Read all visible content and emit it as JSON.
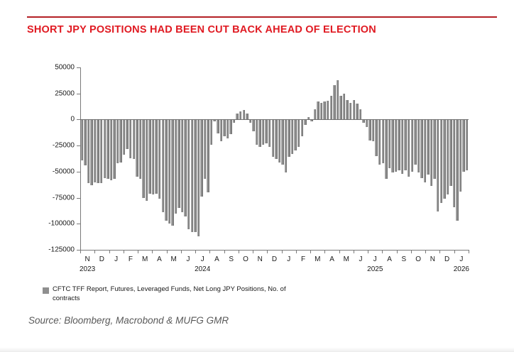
{
  "title": "SHORT JPY POSITIONS HAD BEEN CUT BACK AHEAD OF ELECTION",
  "source": "Source: Bloomberg, Macrobond & MUFG GMR",
  "legend": {
    "label": "CFTC TFF Report, Futures, Leveraged Funds, Net Long JPY Positions, No. of contracts"
  },
  "colors": {
    "title_red": "#e01a22",
    "rule_red": "#b42025",
    "bar_gray": "#8f8f8f",
    "bar_gray_light": "#b0b0b0",
    "bar_gray_dark": "#6d6d6d",
    "axis_gray": "#7a7a7a",
    "source_gray": "#595959"
  },
  "chart_data": {
    "type": "bar",
    "title": "SHORT JPY POSITIONS HAD BEEN CUT BACK AHEAD OF ELECTION",
    "series_name": "CFTC TFF Report, Futures, Leveraged Funds, Net Long JPY Positions, No. of contracts",
    "frequency": "weekly",
    "x_start": "Nov 2023",
    "x_end": "Jan 2026",
    "ylabel": "",
    "xlabel": "",
    "ylim": [
      -125000,
      50000
    ],
    "grid": "none",
    "legend_position": "bottom-left",
    "y_ticks": [
      50000,
      25000,
      0,
      -25000,
      -50000,
      -75000,
      -100000,
      -125000
    ],
    "y_tick_labels": [
      "50000",
      "25000",
      "0",
      "-25000",
      "-50000",
      "-75000",
      "-100000",
      "-125000"
    ],
    "x_month_labels": [
      "N",
      "D",
      "J",
      "F",
      "M",
      "A",
      "M",
      "J",
      "J",
      "A",
      "S",
      "O",
      "N",
      "D",
      "J",
      "F",
      "M",
      "A",
      "M",
      "J",
      "J",
      "A",
      "S",
      "O",
      "N",
      "D",
      "J"
    ],
    "x_year_labels": [
      {
        "label": "2023",
        "month_index": 0
      },
      {
        "label": "2024",
        "month_index": 8
      },
      {
        "label": "2025",
        "month_index": 20
      },
      {
        "label": "2026",
        "month_index": 26
      }
    ],
    "values": [
      -39000,
      -44000,
      -61000,
      -63000,
      -60000,
      -61000,
      -61000,
      -56000,
      -57000,
      -58000,
      -57000,
      -42000,
      -41000,
      -34000,
      -28000,
      -37000,
      -38000,
      -55000,
      -57000,
      -75000,
      -78000,
      -71000,
      -72000,
      -71000,
      -76000,
      -89000,
      -97000,
      -100000,
      -102000,
      -90000,
      -85000,
      -89000,
      -93000,
      -105000,
      -108000,
      -108000,
      -112000,
      -74000,
      -57000,
      -70000,
      -24000,
      -2000,
      -13000,
      -21000,
      -16000,
      -18000,
      -14000,
      -3000,
      6000,
      8000,
      9000,
      6000,
      -3000,
      -11000,
      -24000,
      -26000,
      -24000,
      -23000,
      -26000,
      -36000,
      -38000,
      -41000,
      -43000,
      -51000,
      -36000,
      -33000,
      -30000,
      -26000,
      -16000,
      -5000,
      2000,
      -2000,
      10000,
      17000,
      16000,
      17000,
      18000,
      23000,
      33000,
      38000,
      23000,
      25000,
      19000,
      16000,
      19000,
      15000,
      10000,
      -3000,
      -7000,
      -20000,
      -21000,
      -35000,
      -43000,
      -42000,
      -57000,
      -47000,
      -51000,
      -50000,
      -49000,
      -52000,
      -49000,
      -55000,
      -50000,
      -43000,
      -51000,
      -56000,
      -60000,
      -53000,
      -64000,
      -57000,
      -88000,
      -80000,
      -76000,
      -72000,
      -64000,
      -84000,
      -97000,
      -69000,
      -50000,
      -49000
    ]
  }
}
